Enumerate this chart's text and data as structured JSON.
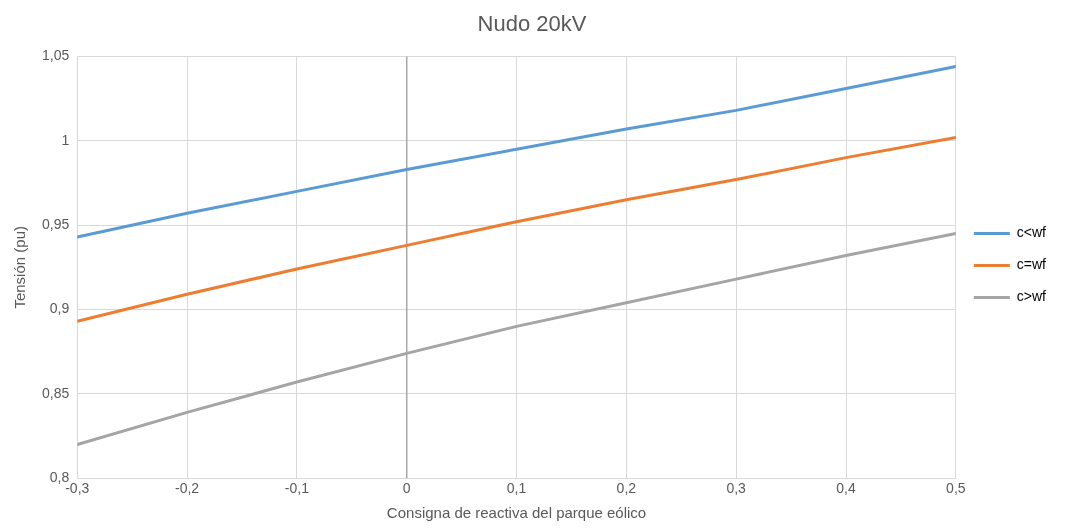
{
  "chart_data": {
    "type": "line",
    "title": "Nudo 20kV",
    "xlabel": "Consigna de reactiva del parque eólico",
    "ylabel": "Tensión (pu)",
    "x": [
      -0.3,
      -0.2,
      -0.1,
      0,
      0.1,
      0.2,
      0.3,
      0.4,
      0.5
    ],
    "series": [
      {
        "name": "c<wf",
        "color": "#5b9bd5",
        "values": [
          0.943,
          0.957,
          0.97,
          0.983,
          0.995,
          1.007,
          1.018,
          1.031,
          1.044
        ]
      },
      {
        "name": "c=wf",
        "color": "#ed7d31",
        "values": [
          0.893,
          0.909,
          0.924,
          0.938,
          0.952,
          0.965,
          0.977,
          0.99,
          1.002
        ]
      },
      {
        "name": "c>wf",
        "color": "#a5a5a5",
        "values": [
          0.82,
          0.839,
          0.857,
          0.874,
          0.89,
          0.904,
          0.918,
          0.932,
          0.945
        ]
      }
    ],
    "xlim": [
      -0.3,
      0.5
    ],
    "xticks": [
      {
        "value": -0.3,
        "label": "-0,3"
      },
      {
        "value": -0.2,
        "label": "-0,2"
      },
      {
        "value": -0.1,
        "label": "-0,1"
      },
      0,
      {
        "value": 0.1,
        "label": "0,1"
      },
      {
        "value": 0.2,
        "label": "0,2"
      },
      {
        "value": 0.3,
        "label": "0,3"
      },
      {
        "value": 0.4,
        "label": "0,4"
      },
      {
        "value": 0.5,
        "label": "0,5"
      }
    ],
    "ylim": [
      0.8,
      1.05
    ],
    "yticks": [
      {
        "value": 0.8,
        "label": "0,8"
      },
      {
        "value": 0.85,
        "label": "0,85"
      },
      {
        "value": 0.9,
        "label": "0,9"
      },
      {
        "value": 0.95,
        "label": "0,95"
      },
      1,
      {
        "value": 1.05,
        "label": "1,05"
      }
    ],
    "ref_lines": [
      {
        "axis": "x",
        "value": 0,
        "color": "#a6a6a6"
      }
    ],
    "grid": true,
    "legend": "right",
    "marker": "none",
    "line_style": "solid"
  }
}
